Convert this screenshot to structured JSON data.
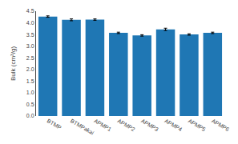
{
  "chart_data": {
    "type": "bar",
    "categories": [
      "BTMP",
      "BTMPakai",
      "APMP1",
      "APMP2",
      "APMP3",
      "APMP4",
      "APMP5",
      "APMP6"
    ],
    "values": [
      4.27,
      4.13,
      4.14,
      3.57,
      3.46,
      3.72,
      3.5,
      3.57
    ],
    "errors": [
      0.03,
      0.04,
      0.03,
      0.03,
      0.03,
      0.05,
      0.03,
      0.03
    ],
    "ylabel": "Bulk (cm³/g)",
    "ylim": [
      0,
      4.5
    ],
    "yticks": [
      {
        "value": 0,
        "label": "0.0"
      },
      0.5,
      {
        "value": 1,
        "label": "1.0"
      },
      1.5,
      {
        "value": 2,
        "label": "2.0"
      },
      2.5,
      {
        "value": 3,
        "label": "3.0"
      },
      3.5,
      {
        "value": 4,
        "label": "4.0"
      },
      4.5
    ],
    "grid": false
  }
}
